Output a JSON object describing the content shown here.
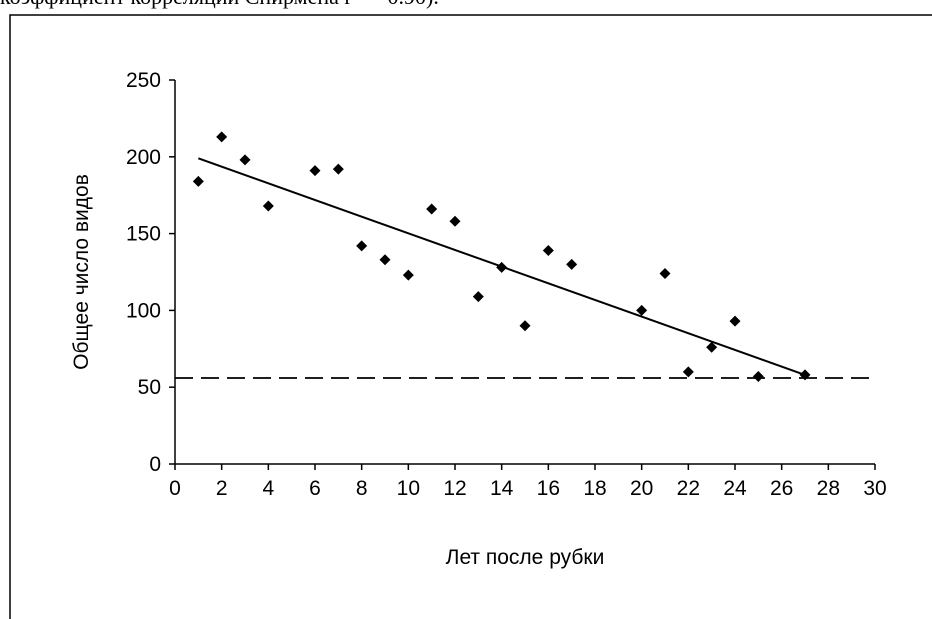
{
  "caption": "коэффициент корреляции Спирмена r = −0.90).",
  "chart_data": {
    "type": "scatter",
    "xlabel": "Лет после рубки",
    "ylabel": "Общее число видов",
    "xlim": [
      0,
      30
    ],
    "xticks": [
      0,
      2,
      4,
      6,
      8,
      10,
      12,
      14,
      16,
      18,
      20,
      22,
      24,
      26,
      28,
      30
    ],
    "ylim": [
      0,
      250
    ],
    "yticks": [
      0,
      50,
      100,
      150,
      200,
      250
    ],
    "color": "#000000",
    "x": [
      1,
      2,
      3,
      4,
      6,
      7,
      8,
      9,
      10,
      11,
      12,
      13,
      14,
      15,
      16,
      17,
      20,
      21,
      22,
      23,
      24,
      25,
      27
    ],
    "values": [
      184,
      213,
      198,
      168,
      191,
      192,
      142,
      133,
      123,
      166,
      158,
      109,
      128,
      90,
      139,
      130,
      100,
      124,
      60,
      76,
      93,
      57,
      58
    ],
    "trend": {
      "x": [
        1,
        27
      ],
      "values": [
        199,
        58
      ]
    },
    "reference_line": {
      "value": 56,
      "style": "dashed"
    }
  }
}
